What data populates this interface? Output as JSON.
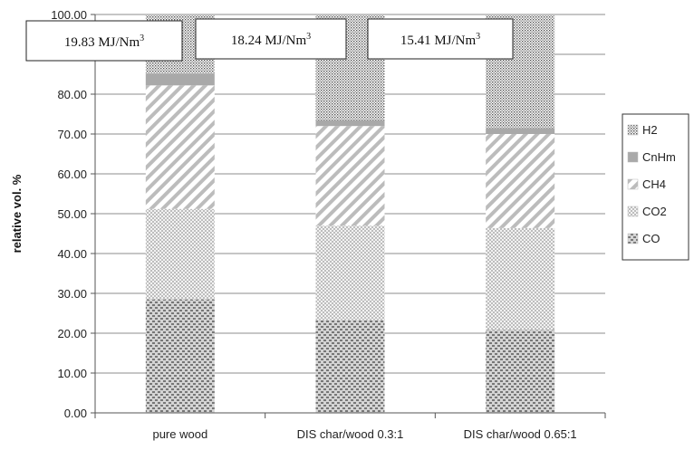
{
  "chart_data": {
    "type": "bar",
    "stacked": true,
    "categories": [
      "pure wood",
      "DIS char/wood 0.3:1",
      "DIS char/wood 0.65:1"
    ],
    "series": [
      {
        "name": "CO",
        "values": [
          28.5,
          23.3,
          20.8
        ],
        "pattern": "horizontal-dashed-crosshatch"
      },
      {
        "name": "CO2",
        "values": [
          22.7,
          23.7,
          25.6
        ],
        "pattern": "fine-checker"
      },
      {
        "name": "CH4",
        "values": [
          31.0,
          25.0,
          23.6
        ],
        "pattern": "diagonal-stripes"
      },
      {
        "name": "CnHm",
        "values": [
          3.0,
          1.5,
          1.5
        ],
        "pattern": "solid-gray"
      },
      {
        "name": "H2",
        "values": [
          14.8,
          26.5,
          28.5
        ],
        "pattern": "dense-dots"
      }
    ],
    "ylabel": "relative vol. %",
    "xlabel": "",
    "ylim": [
      0,
      100
    ],
    "yticks": [
      "0.00",
      "10.00",
      "20.00",
      "30.00",
      "40.00",
      "50.00",
      "60.00",
      "70.00",
      "80.00",
      "90.00",
      "100.00"
    ],
    "grid": true,
    "legend": {
      "position": "right",
      "order": [
        "H2",
        "CnHm",
        "CH4",
        "CO2",
        "CO"
      ]
    },
    "annotations": [
      {
        "value": "19.83",
        "unit": "MJ/Nm",
        "superscript": "3"
      },
      {
        "value": "18.24",
        "unit": "MJ/Nm",
        "superscript": "3"
      },
      {
        "value": "15.41",
        "unit": "MJ/Nm",
        "superscript": "3"
      }
    ]
  }
}
